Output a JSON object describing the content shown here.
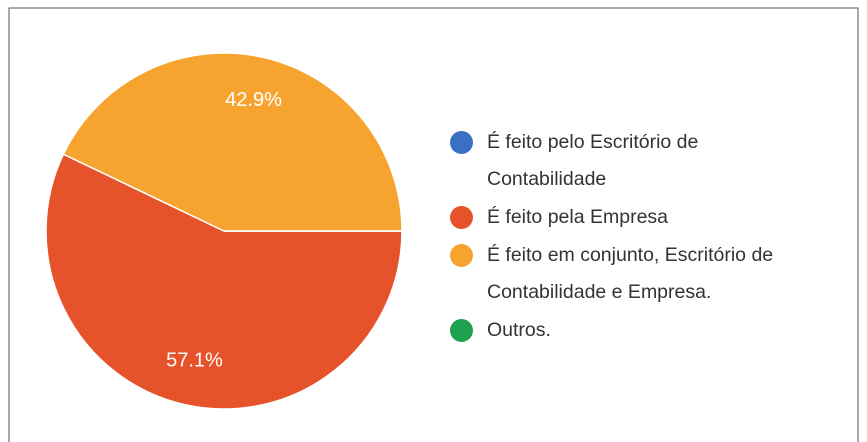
{
  "chart_data": {
    "type": "pie",
    "categories": [
      "É feito pelo Escritório de\nContabilidade",
      "É feito pela Empresa",
      "É feito em conjunto, Escritório de\nContabilidade e Empresa.",
      "Outros."
    ],
    "values": [
      0,
      57.1,
      42.9,
      0
    ],
    "value_labels": [
      null,
      "57.1%",
      "42.9%",
      null
    ],
    "colors": [
      "#3a6fc4",
      "#e6522a",
      "#f6a42f",
      "#1ea04c"
    ]
  }
}
